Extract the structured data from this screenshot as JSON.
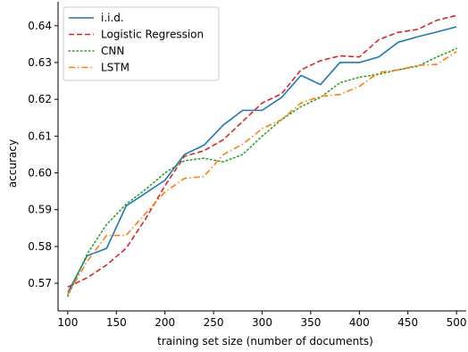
{
  "chart_data": {
    "type": "line",
    "xlabel": "training set size (number of documents)",
    "ylabel": "accuracy",
    "xlim": [
      90,
      510
    ],
    "ylim": [
      0.5625,
      0.6465
    ],
    "xticks": [
      100,
      150,
      200,
      250,
      300,
      350,
      400,
      450,
      500
    ],
    "yticks": [
      0.57,
      0.58,
      0.59,
      0.6,
      0.61,
      0.62,
      0.63,
      0.64
    ],
    "xtick_labels": [
      "100",
      "150",
      "200",
      "250",
      "300",
      "350",
      "400",
      "450",
      "500"
    ],
    "ytick_labels": [
      "0.57",
      "0.58",
      "0.59",
      "0.60",
      "0.61",
      "0.62",
      "0.63",
      "0.64"
    ],
    "grid": false,
    "legend_position": "top-left",
    "x": [
      100,
      120,
      140,
      160,
      180,
      200,
      220,
      240,
      260,
      280,
      300,
      320,
      340,
      360,
      380,
      400,
      420,
      440,
      460,
      480,
      500
    ],
    "series": [
      {
        "name": "i.i.d.",
        "color": "#1f77b4",
        "dash": "solid",
        "values": [
          0.5675,
          0.5775,
          0.5795,
          0.591,
          0.5945,
          0.598,
          0.605,
          0.6075,
          0.613,
          0.617,
          0.617,
          0.6205,
          0.6265,
          0.624,
          0.63,
          0.63,
          0.6315,
          0.6355,
          0.637,
          0.6383,
          0.6397
        ]
      },
      {
        "name": "Logistic Regression",
        "color": "#d62728",
        "dash": "dashed",
        "values": [
          0.569,
          0.5715,
          0.575,
          0.5795,
          0.5875,
          0.5965,
          0.6045,
          0.606,
          0.609,
          0.614,
          0.619,
          0.6215,
          0.628,
          0.6305,
          0.6318,
          0.6315,
          0.6362,
          0.6382,
          0.639,
          0.6415,
          0.6428
        ]
      },
      {
        "name": "CNN",
        "color": "#2ca02c",
        "dash": "dotted",
        "values": [
          0.5665,
          0.578,
          0.586,
          0.5915,
          0.5955,
          0.6,
          0.6033,
          0.604,
          0.603,
          0.605,
          0.61,
          0.6145,
          0.618,
          0.6205,
          0.6245,
          0.626,
          0.6268,
          0.628,
          0.629,
          0.6315,
          0.6338
        ]
      },
      {
        "name": "LSTM",
        "color": "#ff7f0e",
        "dash": "dashdot",
        "values": [
          0.567,
          0.576,
          0.583,
          0.583,
          0.589,
          0.5948,
          0.5985,
          0.599,
          0.605,
          0.6078,
          0.612,
          0.6145,
          0.619,
          0.6208,
          0.6213,
          0.6235,
          0.6273,
          0.628,
          0.6292,
          0.6295,
          0.633
        ]
      }
    ]
  }
}
